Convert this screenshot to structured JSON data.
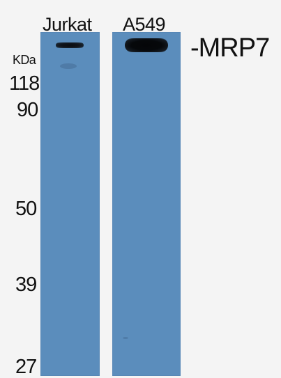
{
  "lanes": [
    {
      "label": "Jurkat"
    },
    {
      "label": "A549"
    }
  ],
  "target": {
    "label": "-MRP7"
  },
  "unit": {
    "label": "KDa"
  },
  "markers": [
    {
      "label": "118"
    },
    {
      "label": "90"
    },
    {
      "label": "50"
    },
    {
      "label": "39"
    },
    {
      "label": "27"
    }
  ],
  "colors": {
    "background": "#f4f4f4",
    "membrane": "#5b8dbc",
    "band": "#07090d",
    "text": "#111111"
  }
}
